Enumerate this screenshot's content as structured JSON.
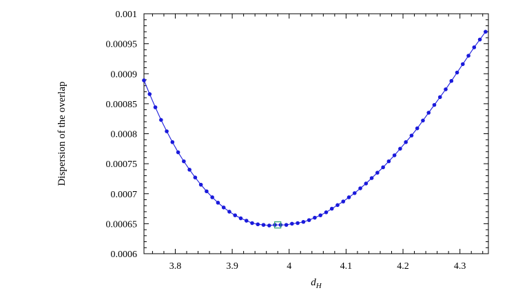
{
  "chart_data": {
    "type": "line",
    "title": "",
    "xlabel_main": "d",
    "xlabel_sub": "H",
    "ylabel": "Dispersion of the overlap",
    "xlim": [
      3.745,
      4.35
    ],
    "ylim": [
      0.0006,
      0.001
    ],
    "grid": false,
    "legend": "none",
    "x_ticks": [
      3.8,
      3.9,
      4.0,
      4.1,
      4.2,
      4.3
    ],
    "x_tick_labels": [
      "3.8",
      "3.9",
      "4",
      "4.1",
      "4.2",
      "4.3"
    ],
    "y_ticks": [
      0.0006,
      0.00065,
      0.0007,
      0.00075,
      0.0008,
      0.00085,
      0.0009,
      0.00095,
      0.001
    ],
    "y_tick_labels": [
      "0.0006",
      "0.00065",
      "0.0007",
      "0.00075",
      "0.0008",
      "0.00085",
      "0.0009",
      "0.00095",
      "0.001"
    ],
    "series": [
      {
        "color": "#1a1adb",
        "x": [
          3.745,
          3.755,
          3.765,
          3.775,
          3.785,
          3.795,
          3.805,
          3.815,
          3.825,
          3.835,
          3.845,
          3.855,
          3.865,
          3.875,
          3.885,
          3.895,
          3.905,
          3.915,
          3.925,
          3.935,
          3.945,
          3.955,
          3.965,
          3.975,
          3.985,
          3.995,
          4.005,
          4.015,
          4.025,
          4.035,
          4.045,
          4.055,
          4.065,
          4.075,
          4.085,
          4.095,
          4.105,
          4.115,
          4.125,
          4.135,
          4.145,
          4.155,
          4.165,
          4.175,
          4.185,
          4.195,
          4.205,
          4.215,
          4.225,
          4.235,
          4.245,
          4.255,
          4.265,
          4.275,
          4.285,
          4.295,
          4.305,
          4.315,
          4.325,
          4.335,
          4.345
        ],
        "y": [
          0.000889,
          0.000866,
          0.000844,
          0.000823,
          0.000804,
          0.000786,
          0.000769,
          0.000754,
          0.00074,
          0.000727,
          0.000715,
          0.000704,
          0.000694,
          0.000685,
          0.000677,
          0.00067,
          0.000664,
          0.000659,
          0.000655,
          0.000651,
          0.000649,
          0.000648,
          0.000647,
          0.000648,
          0.000648,
          0.000648,
          0.00065,
          0.000651,
          0.000653,
          0.000656,
          0.00066,
          0.000664,
          0.000669,
          0.000675,
          0.000681,
          0.000687,
          0.000694,
          0.000701,
          0.000709,
          0.000717,
          0.000726,
          0.000735,
          0.000744,
          0.000754,
          0.000764,
          0.000775,
          0.000786,
          0.000797,
          0.000809,
          0.000822,
          0.000835,
          0.000848,
          0.000861,
          0.000874,
          0.000888,
          0.000902,
          0.000916,
          0.00093,
          0.000944,
          0.000957,
          0.00097
        ]
      }
    ],
    "highlight": {
      "x": 3.98,
      "y": 0.000648,
      "marker": "square",
      "color": "#2a9d6e"
    }
  }
}
